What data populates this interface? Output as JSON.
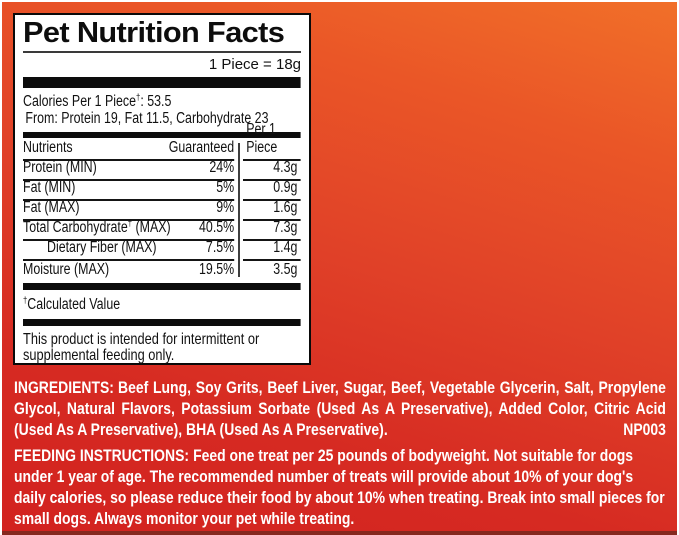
{
  "colors": {
    "background_orange_top": "#f17029",
    "background_red_bottom": "#d2221f",
    "bottom_strip": "#85291f",
    "frame": "#ffffff",
    "label_background": "#ffffff",
    "label_ink": "#111111",
    "red_zone_text": "#ffffff"
  },
  "label": {
    "title": "Pet Nutrition Facts",
    "serving_size": "1 Piece = 18g",
    "dagger": "†",
    "calories_prefix": "Calories Per 1 Piece",
    "calories_suffix": ": 53.5",
    "calories_from": "From: Protein 19, Fat 11.5, Carbohydrate 23",
    "table": {
      "header": {
        "nutrients": "Nutrients",
        "guaranteed": "Guaranteed",
        "per_piece": "Per 1 Piece"
      },
      "rows": [
        {
          "name": "Protein (MIN)",
          "guaranteed": "24%",
          "per_piece": "4.3g"
        },
        {
          "name": "Fat (MIN)",
          "guaranteed": "5%",
          "per_piece": "0.9g"
        },
        {
          "name": "Fat (MAX)",
          "guaranteed": "9%",
          "per_piece": "1.6g"
        },
        {
          "name": "Total Carbohydrate",
          "name_dagger": true,
          "name_suffix": " (MAX)",
          "guaranteed": "40.5%",
          "per_piece": "7.3g"
        },
        {
          "name": "Dietary Fiber (MAX)",
          "indent": true,
          "guaranteed": "7.5%",
          "per_piece": "1.4g"
        },
        {
          "name": "Moisture (MAX)",
          "guaranteed": "19.5%",
          "per_piece": "3.5g"
        }
      ]
    },
    "footnote": "Calculated Value",
    "statement": "This product is intended for intermittent or supplemental feeding only."
  },
  "ingredients": {
    "heading": "INGREDIENTS:",
    "text": "Beef Lung, Soy Grits, Beef Liver, Sugar, Beef, Vegetable Glycerin, Salt, Propylene Glycol, Natural Flavors, Potassium Sorbate (Used As A Preservative), Added Color, Citric Acid (Used As A Preservative), BHA (Used As A Preservative).",
    "code": "NP003"
  },
  "feeding": {
    "heading": "FEEDING INSTRUCTIONS:",
    "text": "Feed one treat per 25 pounds of bodyweight. Not suitable for dogs under 1 year of age. The recommended number of treats will provide about 10% of your dog's daily calories, so please reduce their food by about 10% when treating. Break into small pieces for small dogs. Always monitor your pet while treating."
  }
}
